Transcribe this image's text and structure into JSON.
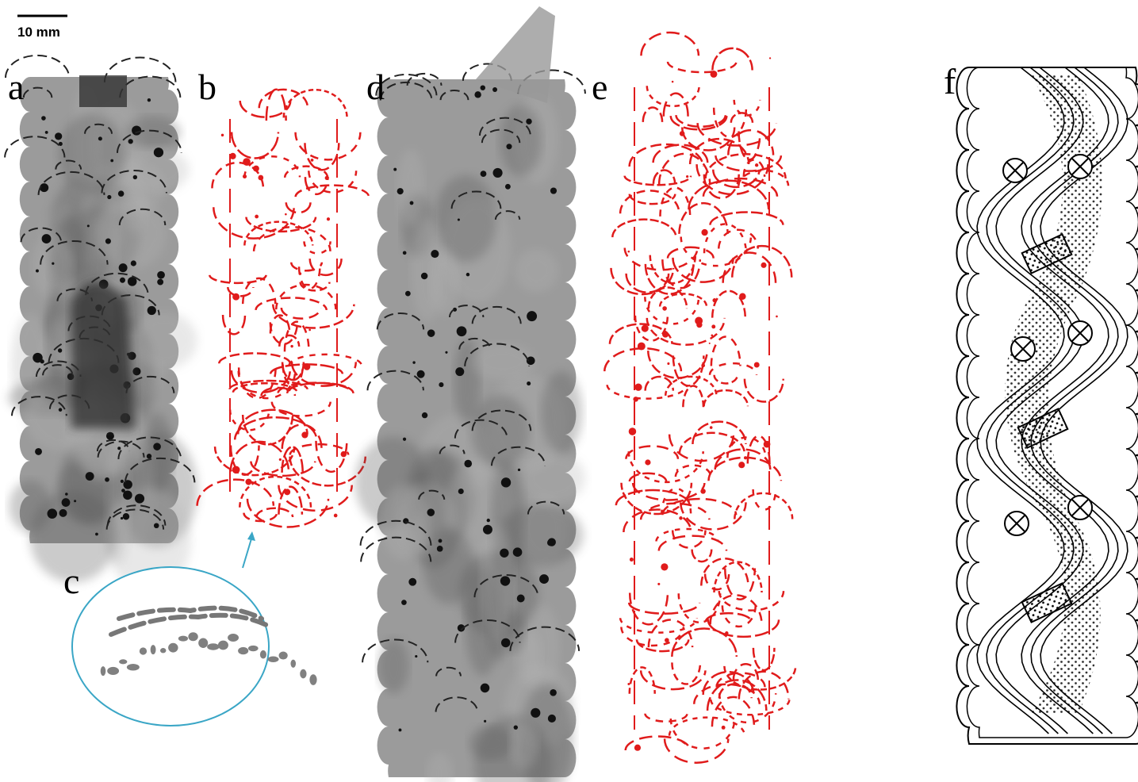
{
  "scale_bar": {
    "label": "10 mm"
  },
  "panels": [
    {
      "label": "a"
    },
    {
      "label": "b"
    },
    {
      "label": "c"
    },
    {
      "label": "d"
    },
    {
      "label": "e"
    },
    {
      "label": "f"
    }
  ]
}
